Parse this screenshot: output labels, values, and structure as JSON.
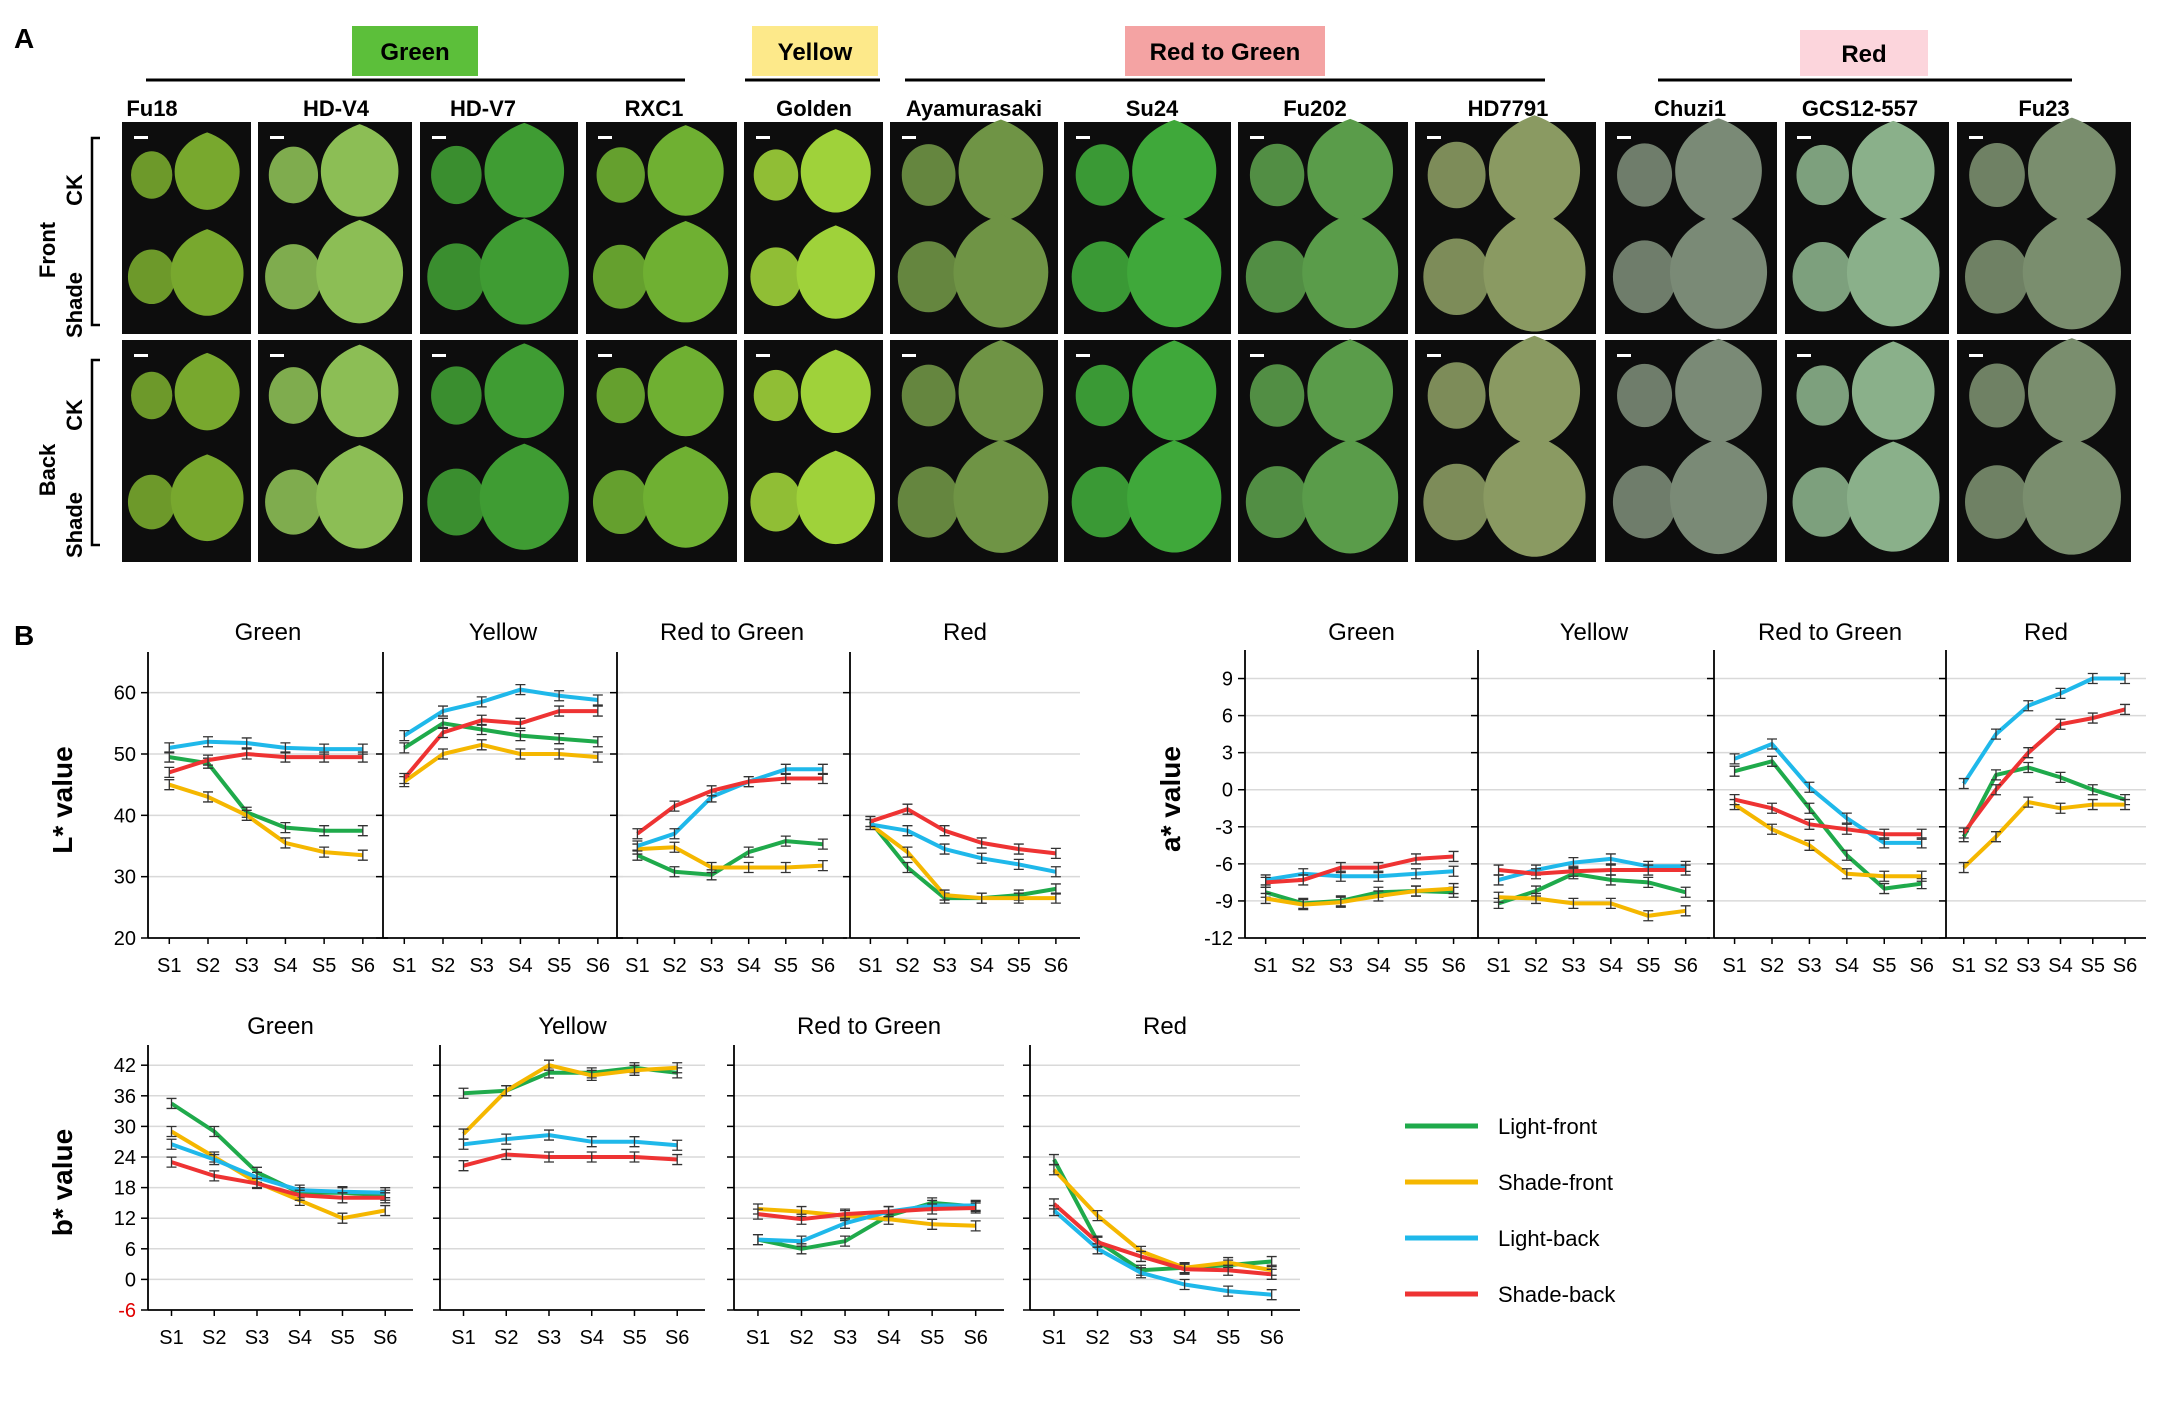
{
  "panel_a": {
    "label": "A",
    "groups": [
      {
        "name": "Green",
        "color": "#5cbf3a"
      },
      {
        "name": "Yellow",
        "color": "#fde98a"
      },
      {
        "name": "Red to Green",
        "color": "#f4a3a3"
      },
      {
        "name": "Red",
        "color": "#fcd5dc"
      }
    ],
    "varieties": [
      "Fu18",
      "HD-V4",
      "HD-V7",
      "RXC1",
      "Golden",
      "Ayamurasaki",
      "Su24",
      "Fu202",
      "HD7791",
      "Chuzi1",
      "GCS12-557",
      "Fu23"
    ],
    "variety_tints": [
      "#78a82e",
      "#8cbe55",
      "#3f9c33",
      "#6fb032",
      "#9fd23a",
      "#6f9445",
      "#3fa83a",
      "#5a9c4a",
      "#8a9a62",
      "#7a8a76",
      "#8ab08a",
      "#7a8e6e"
    ],
    "side_labels": {
      "front": "Front",
      "back": "Back",
      "ck": "CK",
      "shade": "Shade"
    }
  },
  "panel_b": {
    "label": "B",
    "legend": [
      {
        "name": "Light-front",
        "color": "#1faa4b"
      },
      {
        "name": "Shade-front",
        "color": "#f5b700"
      },
      {
        "name": "Light-back",
        "color": "#1fb8ea"
      },
      {
        "name": "Shade-back",
        "color": "#ee3333"
      }
    ]
  },
  "chart_data": [
    {
      "type": "line",
      "metric": "L*",
      "ylabel": "L* value",
      "ylim": [
        20,
        65
      ],
      "yticks": [
        20,
        30,
        40,
        50,
        60
      ],
      "categories": [
        "S1",
        "S2",
        "S3",
        "S4",
        "S5",
        "S6"
      ],
      "panels": [
        {
          "title": "Green",
          "series": [
            {
              "name": "Light-front",
              "values": [
                49.5,
                48.5,
                40.5,
                38,
                37.5,
                37.5
              ]
            },
            {
              "name": "Shade-front",
              "values": [
                45,
                43,
                40,
                35.5,
                34,
                33.5
              ]
            },
            {
              "name": "Light-back",
              "values": [
                51,
                52,
                51.8,
                51,
                50.8,
                50.8
              ]
            },
            {
              "name": "Shade-back",
              "values": [
                47,
                49,
                50,
                49.5,
                49.5,
                49.5
              ]
            }
          ]
        },
        {
          "title": "Yellow",
          "series": [
            {
              "name": "Light-front",
              "values": [
                51,
                55,
                54,
                53,
                52.5,
                52
              ]
            },
            {
              "name": "Shade-front",
              "values": [
                45.5,
                50,
                51.5,
                50,
                50,
                49.5
              ]
            },
            {
              "name": "Light-back",
              "values": [
                53,
                57,
                58.5,
                60.5,
                59.5,
                58.8
              ]
            },
            {
              "name": "Shade-back",
              "values": [
                46,
                53.5,
                55.5,
                55,
                57,
                57
              ]
            }
          ]
        },
        {
          "title": "Red to Green",
          "series": [
            {
              "name": "Light-front",
              "values": [
                33.5,
                30.8,
                30.3,
                34,
                35.8,
                35.3
              ]
            },
            {
              "name": "Shade-front",
              "values": [
                34.5,
                34.8,
                31.5,
                31.5,
                31.5,
                31.8
              ]
            },
            {
              "name": "Light-back",
              "values": [
                35,
                37,
                43,
                45.5,
                47.5,
                47.5
              ]
            },
            {
              "name": "Shade-back",
              "values": [
                37,
                41.5,
                44,
                45.5,
                46,
                46
              ]
            }
          ]
        },
        {
          "title": "Red",
          "series": [
            {
              "name": "Light-front",
              "values": [
                39,
                31.5,
                26.5,
                26.5,
                27,
                28
              ]
            },
            {
              "name": "Shade-front",
              "values": [
                38.5,
                34,
                27,
                26.5,
                26.5,
                26.5
              ]
            },
            {
              "name": "Light-back",
              "values": [
                38.5,
                37.5,
                34.5,
                33,
                32,
                30.8
              ]
            },
            {
              "name": "Shade-back",
              "values": [
                39,
                41,
                37.5,
                35.5,
                34.5,
                33.8
              ]
            }
          ]
        }
      ]
    },
    {
      "type": "line",
      "metric": "a*",
      "ylabel": "a* value",
      "ylim": [
        -12,
        10.5
      ],
      "yticks": [
        -12,
        -9,
        -6,
        -3,
        0,
        3,
        6,
        9
      ],
      "categories": [
        "S1",
        "S2",
        "S3",
        "S4",
        "S5",
        "S6"
      ],
      "panels": [
        {
          "title": "Green",
          "series": [
            {
              "name": "Light-front",
              "values": [
                -8.3,
                -9.2,
                -9,
                -8.3,
                -8.2,
                -8.3
              ]
            },
            {
              "name": "Shade-front",
              "values": [
                -8.8,
                -9.3,
                -9.1,
                -8.6,
                -8.2,
                -8.0
              ]
            },
            {
              "name": "Light-back",
              "values": [
                -7.3,
                -6.8,
                -7.0,
                -7.0,
                -6.8,
                -6.6
              ]
            },
            {
              "name": "Shade-back",
              "values": [
                -7.5,
                -7.3,
                -6.3,
                -6.3,
                -5.6,
                -5.4
              ]
            }
          ]
        },
        {
          "title": "Yellow",
          "series": [
            {
              "name": "Light-front",
              "values": [
                -9.2,
                -8.2,
                -6.8,
                -7.3,
                -7.5,
                -8.3
              ]
            },
            {
              "name": "Shade-front",
              "values": [
                -8.7,
                -8.8,
                -9.2,
                -9.2,
                -10.2,
                -9.8
              ]
            },
            {
              "name": "Light-back",
              "values": [
                -7.3,
                -6.5,
                -5.9,
                -5.6,
                -6.2,
                -6.2
              ]
            },
            {
              "name": "Shade-back",
              "values": [
                -6.5,
                -6.8,
                -6.6,
                -6.5,
                -6.5,
                -6.5
              ]
            }
          ]
        },
        {
          "title": "Red to Green",
          "series": [
            {
              "name": "Light-front",
              "values": [
                1.5,
                2.3,
                -1.5,
                -5.3,
                -8,
                -7.6
              ]
            },
            {
              "name": "Shade-front",
              "values": [
                -1.2,
                -3.2,
                -4.5,
                -6.8,
                -7.0,
                -7.0
              ]
            },
            {
              "name": "Light-back",
              "values": [
                2.5,
                3.7,
                0.2,
                -2.3,
                -4.3,
                -4.3
              ]
            },
            {
              "name": "Shade-back",
              "values": [
                -0.8,
                -1.5,
                -2.8,
                -3.2,
                -3.6,
                -3.6
              ]
            }
          ]
        },
        {
          "title": "Red",
          "series": [
            {
              "name": "Light-front",
              "values": [
                -3.8,
                1.2,
                1.8,
                1.0,
                0,
                -0.8
              ]
            },
            {
              "name": "Shade-front",
              "values": [
                -6.3,
                -3.8,
                -1.0,
                -1.5,
                -1.2,
                -1.2
              ]
            },
            {
              "name": "Light-back",
              "values": [
                0.5,
                4.5,
                6.8,
                7.8,
                9.0,
                9.0
              ]
            },
            {
              "name": "Shade-back",
              "values": [
                -3.5,
                0,
                3.0,
                5.3,
                5.8,
                6.5
              ]
            }
          ]
        }
      ]
    },
    {
      "type": "line",
      "metric": "b*",
      "ylabel": "b* value",
      "ylim": [
        -6,
        44
      ],
      "yticks": [
        -6,
        0,
        6,
        12,
        18,
        24,
        30,
        36,
        42
      ],
      "categories": [
        "S1",
        "S2",
        "S3",
        "S4",
        "S5",
        "S6"
      ],
      "panels": [
        {
          "title": "Green",
          "series": [
            {
              "name": "Light-front",
              "values": [
                34.5,
                29,
                21,
                17,
                17,
                16.5
              ]
            },
            {
              "name": "Shade-front",
              "values": [
                29,
                24,
                19,
                15.5,
                12,
                13.5
              ]
            },
            {
              "name": "Light-back",
              "values": [
                26.5,
                23.5,
                20,
                17.5,
                17.2,
                17
              ]
            },
            {
              "name": "Shade-back",
              "values": [
                23,
                20.3,
                18.8,
                16.5,
                16,
                16
              ]
            }
          ]
        },
        {
          "title": "Yellow",
          "series": [
            {
              "name": "Light-front",
              "values": [
                36.5,
                37,
                40.5,
                40.5,
                41.5,
                40.5
              ]
            },
            {
              "name": "Shade-front",
              "values": [
                28.5,
                37,
                42,
                40,
                41,
                41.5
              ]
            },
            {
              "name": "Light-back",
              "values": [
                26.5,
                27.5,
                28.3,
                27,
                27,
                26.3
              ]
            },
            {
              "name": "Shade-back",
              "values": [
                22.3,
                24.5,
                24,
                24,
                24,
                23.5
              ]
            }
          ]
        },
        {
          "title": "Red to Green",
          "series": [
            {
              "name": "Light-front",
              "values": [
                7.8,
                6,
                7.5,
                12.5,
                15,
                14.3
              ]
            },
            {
              "name": "Shade-front",
              "values": [
                13.8,
                13.3,
                12.5,
                11.8,
                10.8,
                10.5
              ]
            },
            {
              "name": "Light-back",
              "values": [
                7.8,
                7.5,
                11,
                13.3,
                14.5,
                14.5
              ]
            },
            {
              "name": "Shade-back",
              "values": [
                12.8,
                11.8,
                12.8,
                13.3,
                13.8,
                14
              ]
            }
          ]
        },
        {
          "title": "Red",
          "series": [
            {
              "name": "Light-front",
              "values": [
                23.5,
                7.5,
                1.8,
                2.3,
                2.8,
                3.5
              ]
            },
            {
              "name": "Shade-front",
              "values": [
                21.5,
                12.5,
                5.5,
                2.3,
                3.3,
                1.8
              ]
            },
            {
              "name": "Light-back",
              "values": [
                13.5,
                6,
                1.3,
                -1.0,
                -2.3,
                -3
              ]
            },
            {
              "name": "Shade-back",
              "values": [
                14.8,
                7.3,
                4.5,
                2.0,
                1.8,
                1.0
              ]
            }
          ]
        }
      ]
    }
  ]
}
